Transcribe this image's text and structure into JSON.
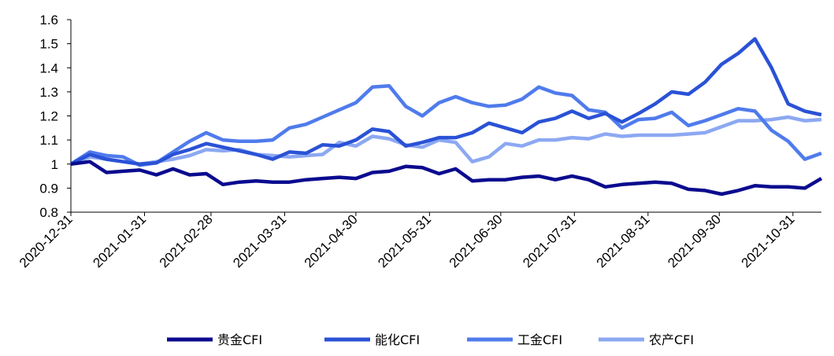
{
  "chart_data": {
    "type": "line",
    "title": "",
    "xlabel": "",
    "ylabel": "",
    "ylim": [
      0.8,
      1.6
    ],
    "yticks": [
      "0.8",
      "0.9",
      "1",
      "1.1",
      "1.2",
      "1.3",
      "1.4",
      "1.5",
      "1.6"
    ],
    "xticks": [
      "2020-12-31",
      "2021-01-31",
      "2021-02-28",
      "2021-03-31",
      "2021-04-30",
      "2021-05-31",
      "2021-06-30",
      "2021-07-31",
      "2021-08-31",
      "2021-09-30",
      "2021-10-31"
    ],
    "grid": false,
    "legend_position": "bottom",
    "x": [
      "2020-12-31",
      "2021-01-08",
      "2021-01-15",
      "2021-01-22",
      "2021-01-29",
      "2021-02-05",
      "2021-02-12",
      "2021-02-19",
      "2021-02-26",
      "2021-03-05",
      "2021-03-12",
      "2021-03-19",
      "2021-03-26",
      "2021-04-02",
      "2021-04-09",
      "2021-04-16",
      "2021-04-23",
      "2021-04-30",
      "2021-05-07",
      "2021-05-14",
      "2021-05-21",
      "2021-05-28",
      "2021-06-04",
      "2021-06-11",
      "2021-06-18",
      "2021-06-25",
      "2021-07-02",
      "2021-07-09",
      "2021-07-16",
      "2021-07-23",
      "2021-07-30",
      "2021-08-06",
      "2021-08-13",
      "2021-08-20",
      "2021-08-27",
      "2021-09-03",
      "2021-09-10",
      "2021-09-17",
      "2021-09-24",
      "2021-10-01",
      "2021-10-08",
      "2021-10-15",
      "2021-10-22",
      "2021-10-29",
      "2021-11-05",
      "2021-11-12"
    ],
    "series": [
      {
        "name": "贵金CFI",
        "color": "#0b0b8f",
        "values": [
          1.0,
          1.01,
          0.965,
          0.97,
          0.975,
          0.955,
          0.98,
          0.955,
          0.96,
          0.915,
          0.925,
          0.93,
          0.925,
          0.925,
          0.935,
          0.94,
          0.945,
          0.94,
          0.965,
          0.97,
          0.99,
          0.985,
          0.96,
          0.98,
          0.93,
          0.935,
          0.935,
          0.945,
          0.95,
          0.935,
          0.95,
          0.935,
          0.905,
          0.915,
          0.92,
          0.925,
          0.92,
          0.895,
          0.89,
          0.875,
          0.89,
          0.91,
          0.905,
          0.905,
          0.9,
          0.94
        ]
      },
      {
        "name": "能化CFI",
        "color": "#2a52d6",
        "values": [
          1.0,
          1.04,
          1.02,
          1.01,
          1.0,
          1.005,
          1.04,
          1.06,
          1.085,
          1.07,
          1.055,
          1.04,
          1.02,
          1.05,
          1.045,
          1.08,
          1.075,
          1.1,
          1.145,
          1.135,
          1.075,
          1.09,
          1.11,
          1.11,
          1.13,
          1.17,
          1.15,
          1.13,
          1.175,
          1.19,
          1.22,
          1.19,
          1.21,
          1.175,
          1.21,
          1.25,
          1.3,
          1.29,
          1.34,
          1.415,
          1.46,
          1.52,
          1.4,
          1.25,
          1.22,
          1.205
        ]
      },
      {
        "name": "工金CFI",
        "color": "#4f7bec",
        "values": [
          1.0,
          1.05,
          1.035,
          1.03,
          0.995,
          1.005,
          1.05,
          1.095,
          1.13,
          1.1,
          1.095,
          1.095,
          1.1,
          1.15,
          1.165,
          1.195,
          1.225,
          1.255,
          1.32,
          1.325,
          1.24,
          1.2,
          1.255,
          1.28,
          1.255,
          1.24,
          1.245,
          1.27,
          1.32,
          1.295,
          1.285,
          1.225,
          1.215,
          1.15,
          1.185,
          1.19,
          1.215,
          1.16,
          1.18,
          1.205,
          1.23,
          1.22,
          1.14,
          1.095,
          1.02,
          1.045
        ]
      },
      {
        "name": "农产CFI",
        "color": "#8ca8f2",
        "values": [
          1.0,
          1.03,
          1.02,
          1.01,
          1.0,
          1.01,
          1.02,
          1.035,
          1.06,
          1.055,
          1.06,
          1.04,
          1.035,
          1.03,
          1.035,
          1.04,
          1.09,
          1.075,
          1.115,
          1.105,
          1.08,
          1.07,
          1.1,
          1.09,
          1.01,
          1.03,
          1.085,
          1.075,
          1.1,
          1.1,
          1.11,
          1.105,
          1.125,
          1.115,
          1.12,
          1.12,
          1.12,
          1.125,
          1.13,
          1.155,
          1.18,
          1.18,
          1.185,
          1.195,
          1.18,
          1.185
        ]
      }
    ]
  }
}
